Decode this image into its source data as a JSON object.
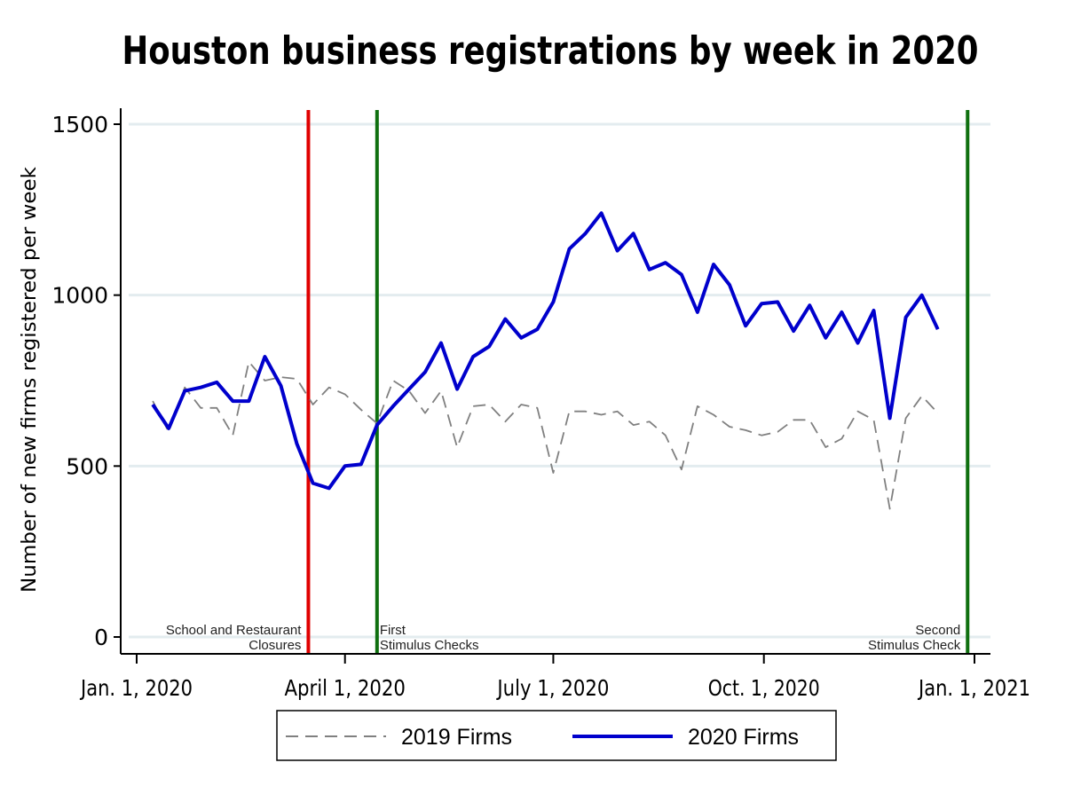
{
  "chart_data": {
    "type": "line",
    "title": "Houston business registrations by week in 2020",
    "xlabel": "",
    "ylabel": "Number of new firms registered per week",
    "ylim": [
      0,
      1500
    ],
    "xlim": [
      "2020-01-01",
      "2021-01-01"
    ],
    "grid": "horizontal",
    "legend_position": "bottom",
    "yticks": [
      0,
      500,
      1000,
      1500
    ],
    "xticks": [
      {
        "date": "2020-01-01",
        "label": "Jan. 1, 2020"
      },
      {
        "date": "2020-04-01",
        "label": "April 1, 2020"
      },
      {
        "date": "2020-07-01",
        "label": "July 1, 2020"
      },
      {
        "date": "2020-10-01",
        "label": "Oct. 1, 2020"
      },
      {
        "date": "2021-01-01",
        "label": "Jan. 1, 2021"
      }
    ],
    "x": [
      "2020-01-08",
      "2020-01-15",
      "2020-01-22",
      "2020-01-29",
      "2020-02-05",
      "2020-02-12",
      "2020-02-19",
      "2020-02-26",
      "2020-03-04",
      "2020-03-11",
      "2020-03-18",
      "2020-03-25",
      "2020-04-01",
      "2020-04-08",
      "2020-04-15",
      "2020-04-22",
      "2020-04-29",
      "2020-05-06",
      "2020-05-13",
      "2020-05-20",
      "2020-05-27",
      "2020-06-03",
      "2020-06-10",
      "2020-06-17",
      "2020-06-24",
      "2020-07-01",
      "2020-07-08",
      "2020-07-15",
      "2020-07-22",
      "2020-07-29",
      "2020-08-05",
      "2020-08-12",
      "2020-08-19",
      "2020-08-26",
      "2020-09-02",
      "2020-09-09",
      "2020-09-16",
      "2020-09-23",
      "2020-09-30",
      "2020-10-07",
      "2020-10-14",
      "2020-10-21",
      "2020-10-28",
      "2020-11-04",
      "2020-11-11",
      "2020-11-18",
      "2020-11-25",
      "2020-12-02",
      "2020-12-09",
      "2020-12-16"
    ],
    "series": [
      {
        "name": "2019 Firms",
        "color": "#808080",
        "style": "dashed",
        "values": [
          690,
          600,
          730,
          670,
          670,
          590,
          805,
          750,
          760,
          755,
          680,
          730,
          710,
          665,
          625,
          750,
          720,
          655,
          720,
          555,
          675,
          680,
          630,
          680,
          670,
          480,
          660,
          660,
          650,
          660,
          620,
          630,
          590,
          490,
          675,
          650,
          615,
          605,
          590,
          600,
          635,
          635,
          555,
          580,
          660,
          635,
          375,
          640,
          705,
          655
        ]
      },
      {
        "name": "2020 Firms",
        "color": "#0000cc",
        "style": "solid",
        "values": [
          680,
          610,
          720,
          730,
          745,
          690,
          690,
          820,
          735,
          565,
          450,
          435,
          500,
          505,
          620,
          675,
          725,
          775,
          860,
          725,
          820,
          850,
          930,
          875,
          900,
          980,
          1135,
          1180,
          1240,
          1130,
          1180,
          1075,
          1095,
          1060,
          950,
          1090,
          1030,
          910,
          975,
          980,
          895,
          970,
          875,
          950,
          860,
          955,
          640,
          935,
          1000,
          900
        ]
      }
    ],
    "events": [
      {
        "date": "2020-03-16",
        "color": "#e00000",
        "label_lines": [
          "School and Restaurant",
          "Closures"
        ],
        "label_side": "left"
      },
      {
        "date": "2020-04-15",
        "color": "#107010",
        "label_lines": [
          "First",
          "Stimulus Checks"
        ],
        "label_side": "right"
      },
      {
        "date": "2020-12-29",
        "color": "#107010",
        "label_lines": [
          "Second",
          "Stimulus Check"
        ],
        "label_side": "left"
      }
    ]
  }
}
